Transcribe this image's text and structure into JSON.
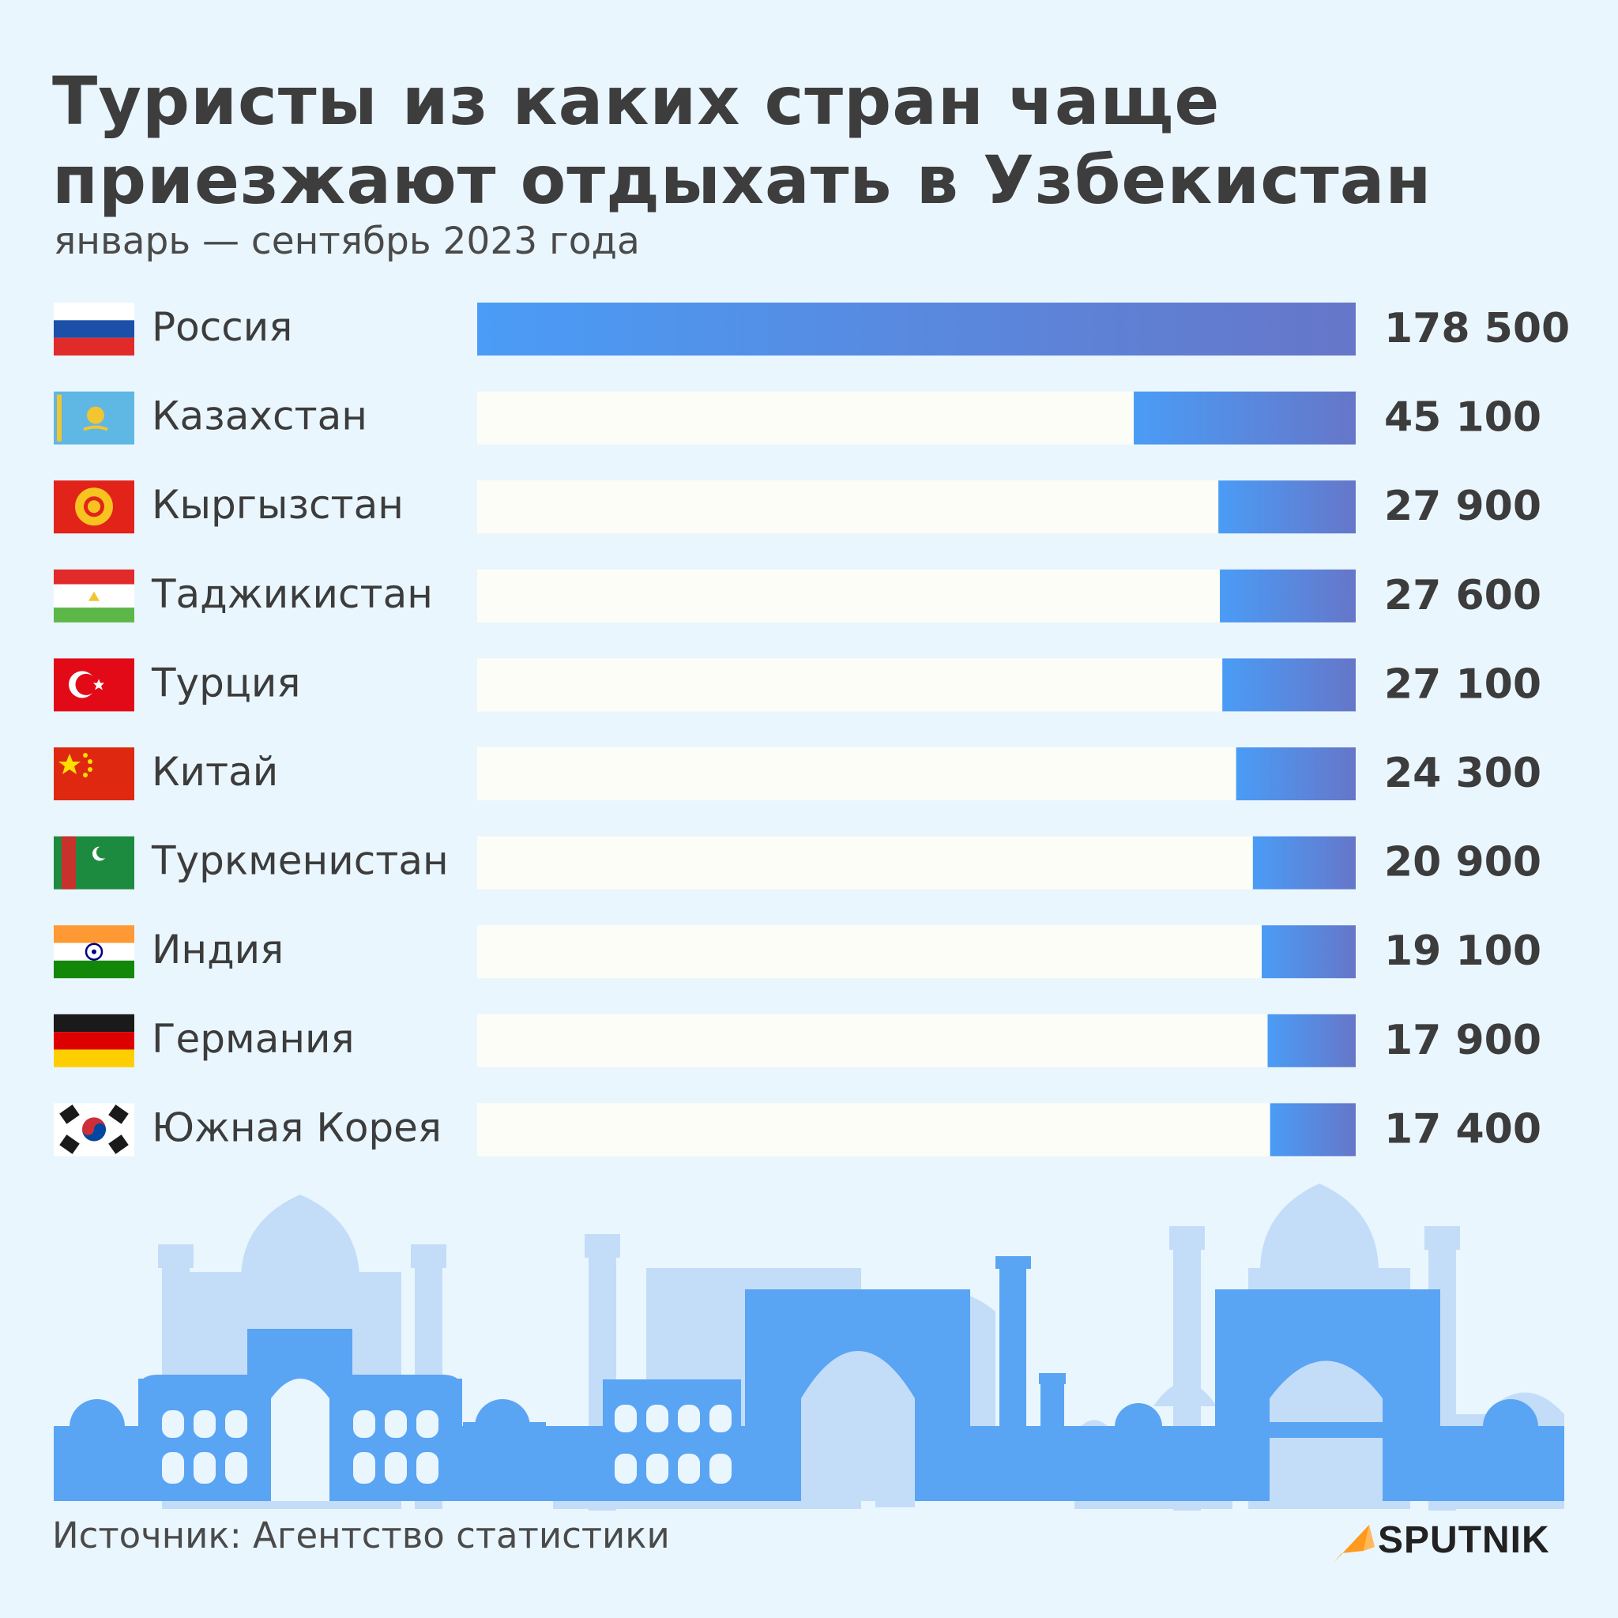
{
  "title": "Туристы из каких стран чаще приезжают отдыхать в Узбекистан",
  "subtitle": "январь — сентябрь 2023 года",
  "source": "Источник: Агентство статистики",
  "brand": "SPUTNIK",
  "colors": {
    "background": "#eaf6fe",
    "bar_gradient_start": "#4a9cf6",
    "bar_gradient_end": "#6676c8",
    "track": "#fdfdf7",
    "skyline_light": "#c3ddf9",
    "skyline_dark": "#5aa4f4",
    "brand_accent": "#ff9a1f"
  },
  "chart_data": {
    "type": "bar",
    "orientation": "horizontal",
    "categories": [
      "Россия",
      "Казахстан",
      "Кыргызстан",
      "Таджикистан",
      "Турция",
      "Китай",
      "Туркменистан",
      "Индия",
      "Германия",
      "Южная Корея"
    ],
    "value_labels": [
      "178 500",
      "45 100",
      "27 900",
      "27 600",
      "27 100",
      "24 300",
      "20 900",
      "19 100",
      "17 900",
      "17 400"
    ],
    "flags": [
      "russia-flag",
      "kazakhstan-flag",
      "kyrgyzstan-flag",
      "tajikistan-flag",
      "turkey-flag",
      "china-flag",
      "turkmenistan-flag",
      "india-flag",
      "germany-flag",
      "south-korea-flag"
    ],
    "series": [
      {
        "values": [
          178500,
          45100,
          27900,
          27600,
          27100,
          24300,
          20900,
          19100,
          17900,
          17400
        ]
      }
    ],
    "xlim": [
      0,
      178500
    ],
    "bar_direction": "right-aligned",
    "grid": false,
    "legend": "none"
  }
}
